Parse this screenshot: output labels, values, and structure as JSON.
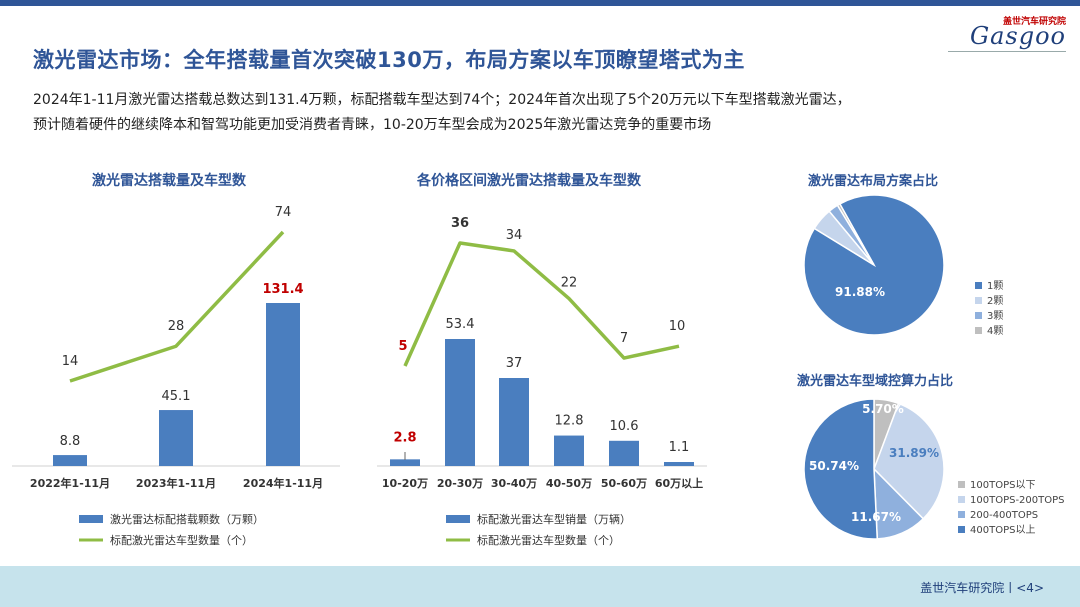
{
  "header": {
    "logo_sub": "盖世汽车研究院",
    "logo_main": "Gasgoo",
    "title": "激光雷达市场：全年搭载量首次突破130万，布局方案以车顶瞭望塔式为主",
    "desc_line1": "2024年1-11月激光雷达搭载总数达到131.4万颗，标配搭载车型达到74个；2024年首次出现了5个20万元以下车型搭载激光雷达，",
    "desc_line2": "预计随着硬件的继续降本和智驾功能更加受消费者青睐，10-20万车型会成为2025年激光雷达竞争的重要市场"
  },
  "footer": {
    "text": "盖世汽车研究院丨<4>"
  },
  "colors": {
    "bar": "#4a7ebf",
    "line": "#8fbc45",
    "highlight": "#c00000",
    "title": "#2f5597"
  },
  "chart_data": [
    {
      "type": "bar",
      "title": "激光雷达搭载量及车型数",
      "categories": [
        "2022年1-11月",
        "2023年1-11月",
        "2024年1-11月"
      ],
      "series": [
        {
          "name": "激光雷达标配搭载颗数（万颗）",
          "type": "bar",
          "values": [
            8.8,
            45.1,
            131.4
          ],
          "labels": [
            "8.8",
            "45.1",
            "131.4"
          ]
        },
        {
          "name": "标配激光雷达车型数量（个）",
          "type": "line",
          "values": [
            14,
            28,
            74
          ],
          "labels": [
            "14",
            "28",
            "74"
          ]
        }
      ],
      "highlight": [
        "131.4"
      ]
    },
    {
      "type": "bar",
      "title": "各价格区间激光雷达搭载量及车型数",
      "categories": [
        "10-20万",
        "20-30万",
        "30-40万",
        "40-50万",
        "50-60万",
        "60万以上"
      ],
      "series": [
        {
          "name": "标配激光雷达车型销量（万辆）",
          "type": "bar",
          "values": [
            2.8,
            53.4,
            37,
            12.8,
            10.6,
            1.1
          ],
          "labels": [
            "2.8",
            "53.4",
            "37",
            "12.8",
            "10.6",
            "1.1"
          ]
        },
        {
          "name": "标配激光雷达车型数量（个）",
          "type": "line",
          "values": [
            5,
            36,
            34,
            22,
            7,
            10
          ],
          "labels": [
            "5",
            "36",
            "34",
            "22",
            "7",
            "10"
          ]
        }
      ],
      "highlight": [
        "2.8",
        "5"
      ],
      "bold": [
        "36"
      ]
    },
    {
      "type": "pie",
      "title": "激光雷达布局方案占比",
      "legend": [
        "1颗",
        "2颗",
        "3颗",
        "4颗"
      ],
      "values": [
        91.88,
        5.2,
        2.3,
        0.62
      ],
      "labels": [
        "91.88%",
        "",
        "",
        ""
      ],
      "colors": [
        "#4a7ebf",
        "#c5d5ec",
        "#8fb0dd",
        "#bfbfbf"
      ]
    },
    {
      "type": "pie",
      "title": "激光雷达车型域控算力占比",
      "legend": [
        "100TOPS以下",
        "100TOPS-200TOPS",
        "200-400TOPS",
        "400TOPS以上"
      ],
      "values": [
        5.7,
        31.89,
        11.67,
        50.74
      ],
      "labels": [
        "5.70%",
        "31.89%",
        "11.67%",
        "50.74%"
      ],
      "colors": [
        "#bfbfbf",
        "#c5d5ec",
        "#8fb0dd",
        "#4a7ebf"
      ]
    }
  ]
}
